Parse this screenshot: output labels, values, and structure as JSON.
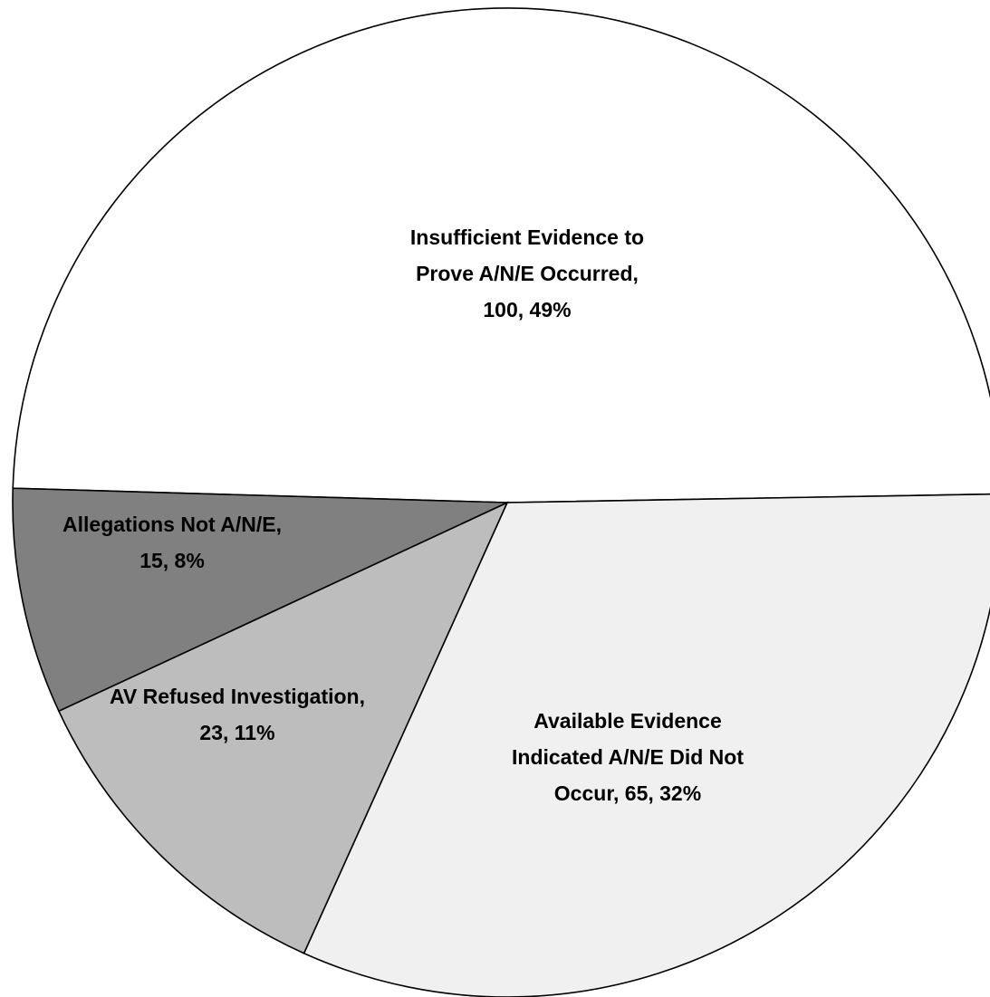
{
  "chart_data": {
    "type": "pie",
    "title": "",
    "slices": [
      {
        "label_lines": [
          "Insufficient Evidence to",
          "Prove A/N/E Occurred,",
          "100, 49%"
        ],
        "value": 100,
        "percent": 49,
        "color": "#ffffff"
      },
      {
        "label_lines": [
          "Available Evidence",
          "Indicated A/N/E Did Not",
          "Occur, 65, 32%"
        ],
        "value": 65,
        "percent": 32,
        "color": "#f0f0f0"
      },
      {
        "label_lines": [
          "AV Refused Investigation,",
          "23, 11%"
        ],
        "value": 23,
        "percent": 11,
        "color": "#bdbdbd"
      },
      {
        "label_lines": [
          "Allegations Not A/N/E,",
          "15, 8%"
        ],
        "value": 15,
        "percent": 8,
        "color": "#808080"
      }
    ]
  }
}
